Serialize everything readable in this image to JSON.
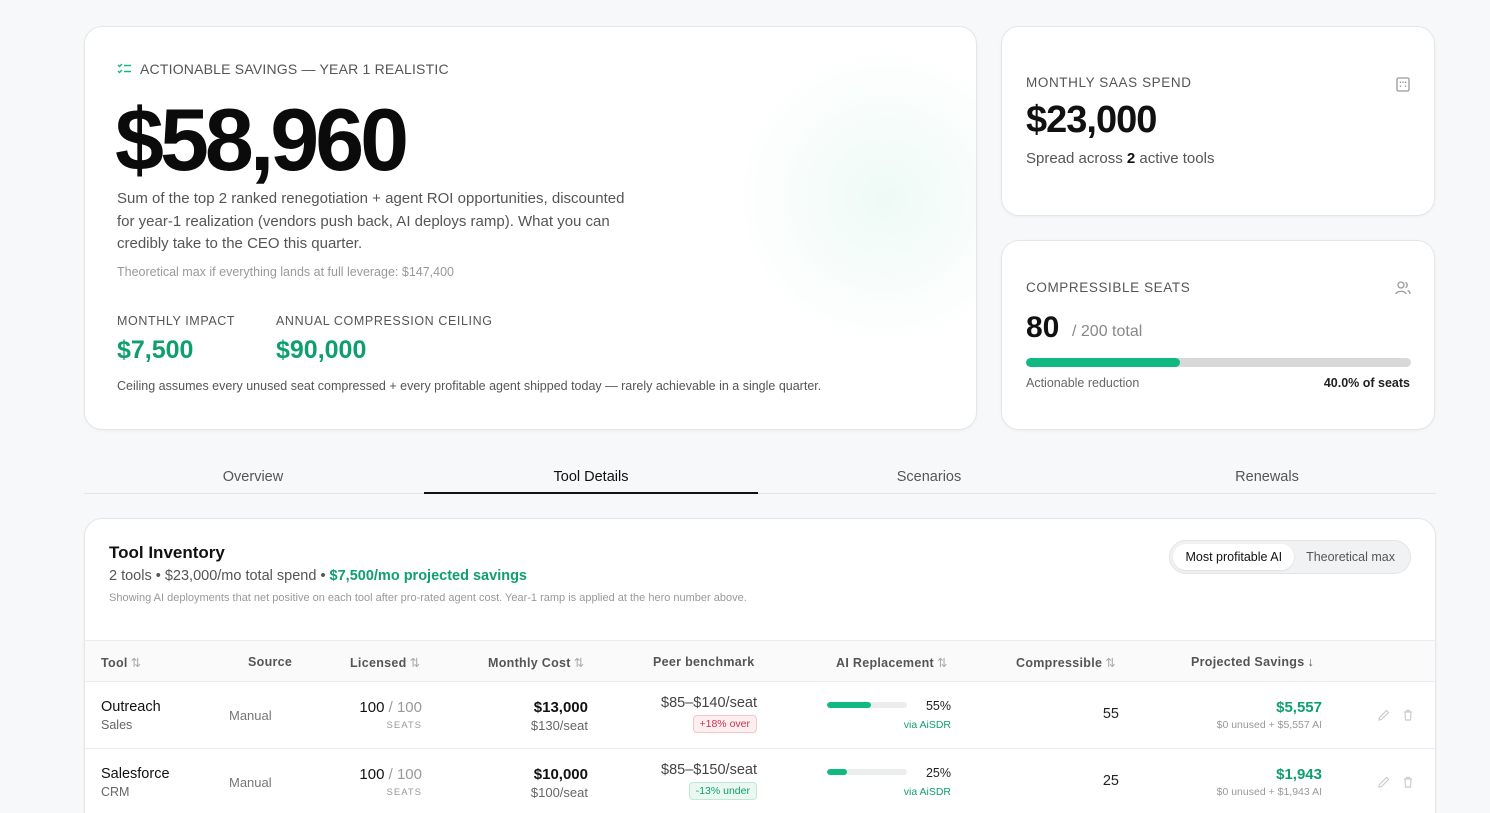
{
  "hero": {
    "eyebrow": "ACTIONABLE SAVINGS — YEAR 1 REALISTIC",
    "amount": "$58,960",
    "description": "Sum of the top 2 ranked renegotiation + agent ROI opportunities, discounted for year-1 realization (vendors push back, AI deploys ramp). What you can credibly take to the CEO this quarter.",
    "theoretical_max": "Theoretical max if everything lands at full leverage: $147,400",
    "monthly_impact_label": "MONTHLY IMPACT",
    "monthly_impact_value": "$7,500",
    "ceiling_label": "ANNUAL COMPRESSION CEILING",
    "ceiling_value": "$90,000",
    "footnote": "Ceiling assumes every unused seat compressed + every profitable agent shipped today — rarely achievable in a single quarter."
  },
  "spend": {
    "label": "MONTHLY SAAS SPEND",
    "amount": "$23,000",
    "sub_prefix": "Spread across ",
    "sub_count": "2",
    "sub_suffix": " active tools",
    "icon": "building-icon"
  },
  "seats": {
    "label": "COMPRESSIBLE SEATS",
    "value": "80",
    "total": "/ 200 total",
    "fraction": 0.4,
    "foot_left": "Actionable reduction",
    "foot_right": "40.0% of seats",
    "icon": "users-icon"
  },
  "tabs": [
    {
      "label": "Overview",
      "active": false
    },
    {
      "label": "Tool Details",
      "active": true
    },
    {
      "label": "Scenarios",
      "active": false
    },
    {
      "label": "Renewals",
      "active": false
    }
  ],
  "inventory": {
    "title": "Tool Inventory",
    "sub_plain": "2 tools • $23,000/mo total spend • ",
    "sub_green": "$7,500/mo projected savings",
    "note": "Showing AI deployments that net positive on each tool after pro-rated agent cost. Year-1 ramp is applied at the hero number above.",
    "toggle": [
      "Most profitable AI",
      "Theoretical max"
    ],
    "columns": {
      "tool": "Tool",
      "source": "Source",
      "licensed": "Licensed",
      "monthly_cost": "Monthly Cost",
      "peer": "Peer benchmark",
      "ai": "AI Replacement",
      "compressible": "Compressible",
      "savings": "Projected Savings"
    },
    "sort_both": "⇅",
    "sort_down": "↓",
    "rows": [
      {
        "name": "Outreach",
        "category": "Sales",
        "source": "Manual",
        "licensed": "100",
        "licensed_total": "/ 100",
        "seats_label": "SEATS",
        "cost": "$13,000",
        "cost_per_seat": "$130/seat",
        "peer_range": "$85–$140/seat",
        "peer_badge": "+18% over",
        "peer_status": "over",
        "ai_fraction": 0.55,
        "ai_pct": "55%",
        "ai_via": "via AiSDR",
        "compressible": "55",
        "savings": "$5,557",
        "savings_detail": "$0 unused + $5,557 AI"
      },
      {
        "name": "Salesforce",
        "category": "CRM",
        "source": "Manual",
        "licensed": "100",
        "licensed_total": "/ 100",
        "seats_label": "SEATS",
        "cost": "$10,000",
        "cost_per_seat": "$100/seat",
        "peer_range": "$85–$150/seat",
        "peer_badge": "-13% under",
        "peer_status": "under",
        "ai_fraction": 0.25,
        "ai_pct": "25%",
        "ai_via": "via AiSDR",
        "compressible": "25",
        "savings": "$1,943",
        "savings_detail": "$0 unused + $1,943 AI"
      }
    ]
  }
}
